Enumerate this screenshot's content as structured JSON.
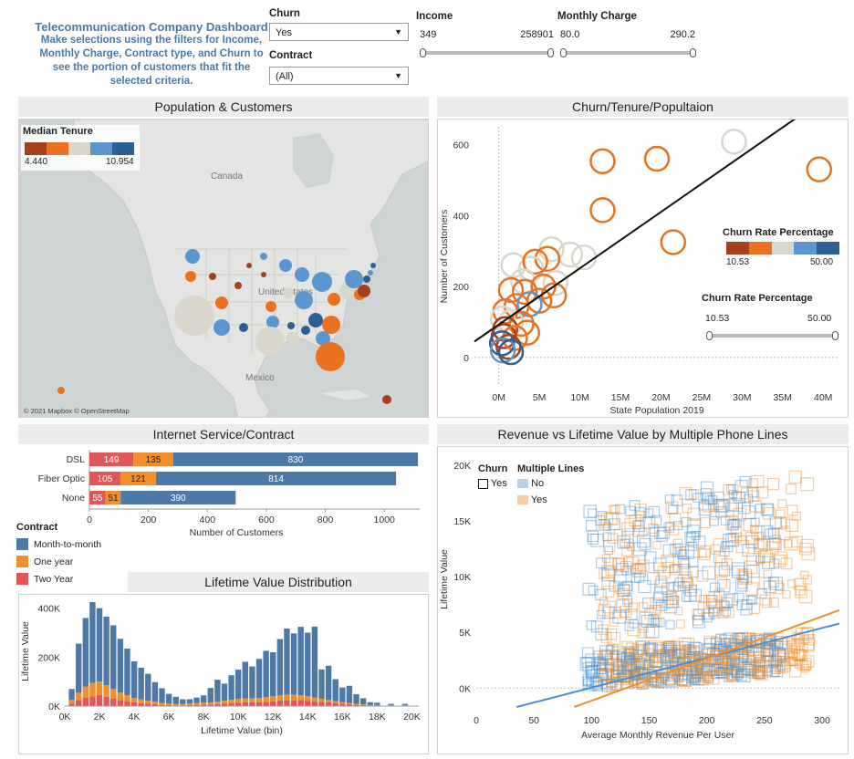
{
  "intro": {
    "title": "Telecommunication Company Dashboard",
    "body": "Make selections using the filters for Income, Monthly Charge, Contract type, and Churn to see the portion of customers that fit the selected criteria."
  },
  "filters": {
    "churn": {
      "label": "Churn",
      "value": "Yes"
    },
    "contract": {
      "label": "Contract",
      "value": "(All)"
    },
    "income": {
      "label": "Income",
      "min": "349",
      "max": "258901"
    },
    "monthly_charge": {
      "label": "Monthly Charge",
      "min": "80.0",
      "max": "290.2"
    }
  },
  "map_panel": {
    "title": "Population & Customers",
    "legend_title": "Median Tenure",
    "legend_min": "4.440",
    "legend_max": "10.954",
    "labels": {
      "canada": "Canada",
      "united_states": "United States",
      "mexico": "Mexico"
    },
    "attribution": "© 2021 Mapbox © OpenStreetMap",
    "colors": [
      "#a4401c",
      "#e8721f",
      "#d9d6cc",
      "#5b96cf",
      "#2e5f94"
    ]
  },
  "scatter_panel": {
    "title": "Churn/Tenure/Popultaion",
    "legend_title": "Churn Rate Percentage",
    "legend_min": "10.53",
    "legend_max": "50.00",
    "filter_title": "Churn Rate Percentage",
    "filter_min": "10.53",
    "filter_max": "50.00"
  },
  "internet_panel": {
    "title": "Internet Service/Contract",
    "legend_title": "Contract",
    "legend_items": [
      {
        "label": "Month-to-month",
        "color": "#4e79a7"
      },
      {
        "label": "One year",
        "color": "#f28e2b"
      },
      {
        "label": "Two Year",
        "color": "#e15759"
      }
    ]
  },
  "lifetime_panel": {
    "title": "Lifetime Value Distribution"
  },
  "revenue_panel": {
    "title": "Revenue vs Lifetime Value by Multiple Phone Lines",
    "legend_churn_title": "Churn",
    "legend_churn_item": "Yes",
    "legend_lines_title": "Multiple Lines",
    "legend_lines_items": [
      "No",
      "Yes"
    ]
  },
  "chart_data": [
    {
      "type": "scatter",
      "title": "Churn/Tenure/Popultaion",
      "xlabel": "State Population 2019",
      "ylabel": "Number of Customers",
      "x_ticks": [
        "0M",
        "5M",
        "10M",
        "15M",
        "20M",
        "25M",
        "30M",
        "35M",
        "40M"
      ],
      "y_ticks": [
        "0",
        "200",
        "400",
        "600"
      ],
      "xlim": [
        -3,
        42
      ],
      "ylim": [
        -80,
        650
      ],
      "trend_line": [
        [
          -3,
          45
        ],
        [
          37,
          680
        ]
      ],
      "points": [
        {
          "x": 39.5,
          "y": 530,
          "color": "#e8721f"
        },
        {
          "x": 29.0,
          "y": 608,
          "color": "#d9d6cc"
        },
        {
          "x": 19.5,
          "y": 560,
          "color": "#e8721f"
        },
        {
          "x": 12.8,
          "y": 553,
          "color": "#e8721f"
        },
        {
          "x": 12.8,
          "y": 415,
          "color": "#e8721f"
        },
        {
          "x": 21.5,
          "y": 325,
          "color": "#e8721f"
        },
        {
          "x": 10.5,
          "y": 282,
          "color": "#d9d6cc"
        },
        {
          "x": 8.8,
          "y": 290,
          "color": "#d9d6cc"
        },
        {
          "x": 6.5,
          "y": 305,
          "color": "#d9d6cc"
        },
        {
          "x": 6.0,
          "y": 278,
          "color": "#e8721f"
        },
        {
          "x": 1.8,
          "y": 260,
          "color": "#d9d6cc"
        },
        {
          "x": 4.0,
          "y": 250,
          "color": "#d9d6cc"
        },
        {
          "x": 4.5,
          "y": 270,
          "color": "#e8721f"
        },
        {
          "x": 3.0,
          "y": 215,
          "color": "#d9d6cc"
        },
        {
          "x": 7.0,
          "y": 210,
          "color": "#d9d6cc"
        },
        {
          "x": 5.5,
          "y": 200,
          "color": "#e8721f"
        },
        {
          "x": 3.2,
          "y": 185,
          "color": "#e8721f"
        },
        {
          "x": 1.5,
          "y": 190,
          "color": "#e8721f"
        },
        {
          "x": 6.8,
          "y": 175,
          "color": "#e8721f"
        },
        {
          "x": 5.0,
          "y": 160,
          "color": "#e8721f"
        },
        {
          "x": 3.8,
          "y": 150,
          "color": "#5b96cf"
        },
        {
          "x": 2.2,
          "y": 145,
          "color": "#e8721f"
        },
        {
          "x": 0.8,
          "y": 130,
          "color": "#e8721f"
        },
        {
          "x": 0.5,
          "y": 110,
          "color": "#d9d6cc"
        },
        {
          "x": 1.5,
          "y": 100,
          "color": "#d9d6cc"
        },
        {
          "x": 2.8,
          "y": 95,
          "color": "#e8721f"
        },
        {
          "x": 0.8,
          "y": 80,
          "color": "#a4401c"
        },
        {
          "x": 3.5,
          "y": 70,
          "color": "#e8721f"
        },
        {
          "x": 0.6,
          "y": 60,
          "color": "#a4401c"
        },
        {
          "x": 2.0,
          "y": 55,
          "color": "#e8721f"
        },
        {
          "x": 0.4,
          "y": 40,
          "color": "#2e5f94"
        },
        {
          "x": 1.2,
          "y": 30,
          "color": "#a4401c"
        },
        {
          "x": 0.5,
          "y": 20,
          "color": "#5b96cf"
        },
        {
          "x": 1.5,
          "y": 15,
          "color": "#2e5f94"
        }
      ]
    },
    {
      "type": "bar",
      "title": "Internet Service/Contract",
      "xlabel": "Number of Customers",
      "categories": [
        "DSL",
        "Fiber Optic",
        "None"
      ],
      "x_ticks": [
        "0",
        "200",
        "400",
        "600",
        "800",
        "1000"
      ],
      "xlim": [
        0,
        1120
      ],
      "series": [
        {
          "name": "Two Year",
          "values": [
            149,
            105,
            55
          ]
        },
        {
          "name": "One year",
          "values": [
            135,
            121,
            51
          ]
        },
        {
          "name": "Month-to-month",
          "values": [
            830,
            814,
            390
          ]
        }
      ]
    },
    {
      "type": "bar",
      "title": "Lifetime Value Distribution",
      "xlabel": "Lifetime Value (bin)",
      "ylabel": "Lifetime Value",
      "x_ticks": [
        "0K",
        "2K",
        "4K",
        "6K",
        "8K",
        "10K",
        "12K",
        "14K",
        "16K",
        "18K",
        "20K"
      ],
      "y_ticks": [
        "0K",
        "200K",
        "400K"
      ],
      "ylim": [
        0,
        440
      ],
      "bin_width": 0.4,
      "bins": [
        0.4,
        0.8,
        1.2,
        1.6,
        2.0,
        2.4,
        2.8,
        3.2,
        3.6,
        4.0,
        4.4,
        4.8,
        5.2,
        5.6,
        6.0,
        6.4,
        6.8,
        7.2,
        7.6,
        8.0,
        8.4,
        8.8,
        9.2,
        9.6,
        10.0,
        10.4,
        10.8,
        11.2,
        11.6,
        12.0,
        12.4,
        12.8,
        13.2,
        13.6,
        14.0,
        14.4,
        14.8,
        15.2,
        15.6,
        16.0,
        16.4,
        16.8,
        17.2,
        17.6,
        18.0,
        18.4,
        18.8,
        19.2,
        19.6
      ],
      "series": [
        {
          "name": "Two Year",
          "color": "#e15759",
          "values": [
            10,
            25,
            35,
            40,
            45,
            38,
            30,
            25,
            20,
            15,
            12,
            10,
            8,
            5,
            4,
            3,
            3,
            4,
            5,
            6,
            6,
            8,
            10,
            12,
            14,
            15,
            16,
            16,
            18,
            20,
            22,
            25,
            25,
            24,
            22,
            20,
            18,
            15,
            12,
            10,
            8,
            5,
            4,
            2,
            2,
            0,
            2,
            0,
            2
          ]
        },
        {
          "name": "One year",
          "color": "#f28e2b",
          "values": [
            15,
            30,
            45,
            55,
            55,
            48,
            40,
            30,
            25,
            18,
            15,
            12,
            10,
            8,
            6,
            5,
            5,
            6,
            8,
            8,
            8,
            10,
            12,
            14,
            15,
            16,
            16,
            17,
            18,
            20,
            22,
            22,
            22,
            20,
            18,
            15,
            12,
            10,
            8,
            6,
            5,
            4,
            3,
            2,
            2,
            0,
            2,
            0,
            2
          ]
        },
        {
          "name": "Month-to-month",
          "color": "#4e79a7",
          "values": [
            45,
            200,
            280,
            330,
            300,
            280,
            260,
            220,
            190,
            150,
            130,
            110,
            80,
            60,
            40,
            30,
            20,
            18,
            22,
            30,
            60,
            90,
            70,
            100,
            120,
            150,
            130,
            160,
            190,
            180,
            230,
            270,
            250,
            280,
            260,
            290,
            120,
            140,
            90,
            60,
            70,
            40,
            25,
            12,
            10,
            0,
            5,
            0,
            5
          ]
        }
      ]
    },
    {
      "type": "scatter",
      "title": "Revenue vs Lifetime Value by Multiple Phone Lines",
      "xlabel": "Average Monthly Revenue Per User",
      "ylabel": "Lifetime Value",
      "x_ticks": [
        "0",
        "50",
        "100",
        "150",
        "200",
        "250",
        "300"
      ],
      "y_ticks": [
        "0K",
        "5K",
        "10K",
        "15K",
        "20K"
      ],
      "xlim": [
        0,
        315
      ],
      "ylim": [
        -1700,
        21000
      ],
      "series": [
        {
          "name": "No",
          "color": "#4a90d0",
          "trend": [
            [
              35,
              -1700
            ],
            [
              315,
              5800
            ]
          ]
        },
        {
          "name": "Yes",
          "color": "#f28e2b",
          "trend": [
            [
              85,
              -1700
            ],
            [
              315,
              7000
            ]
          ]
        }
      ]
    }
  ]
}
